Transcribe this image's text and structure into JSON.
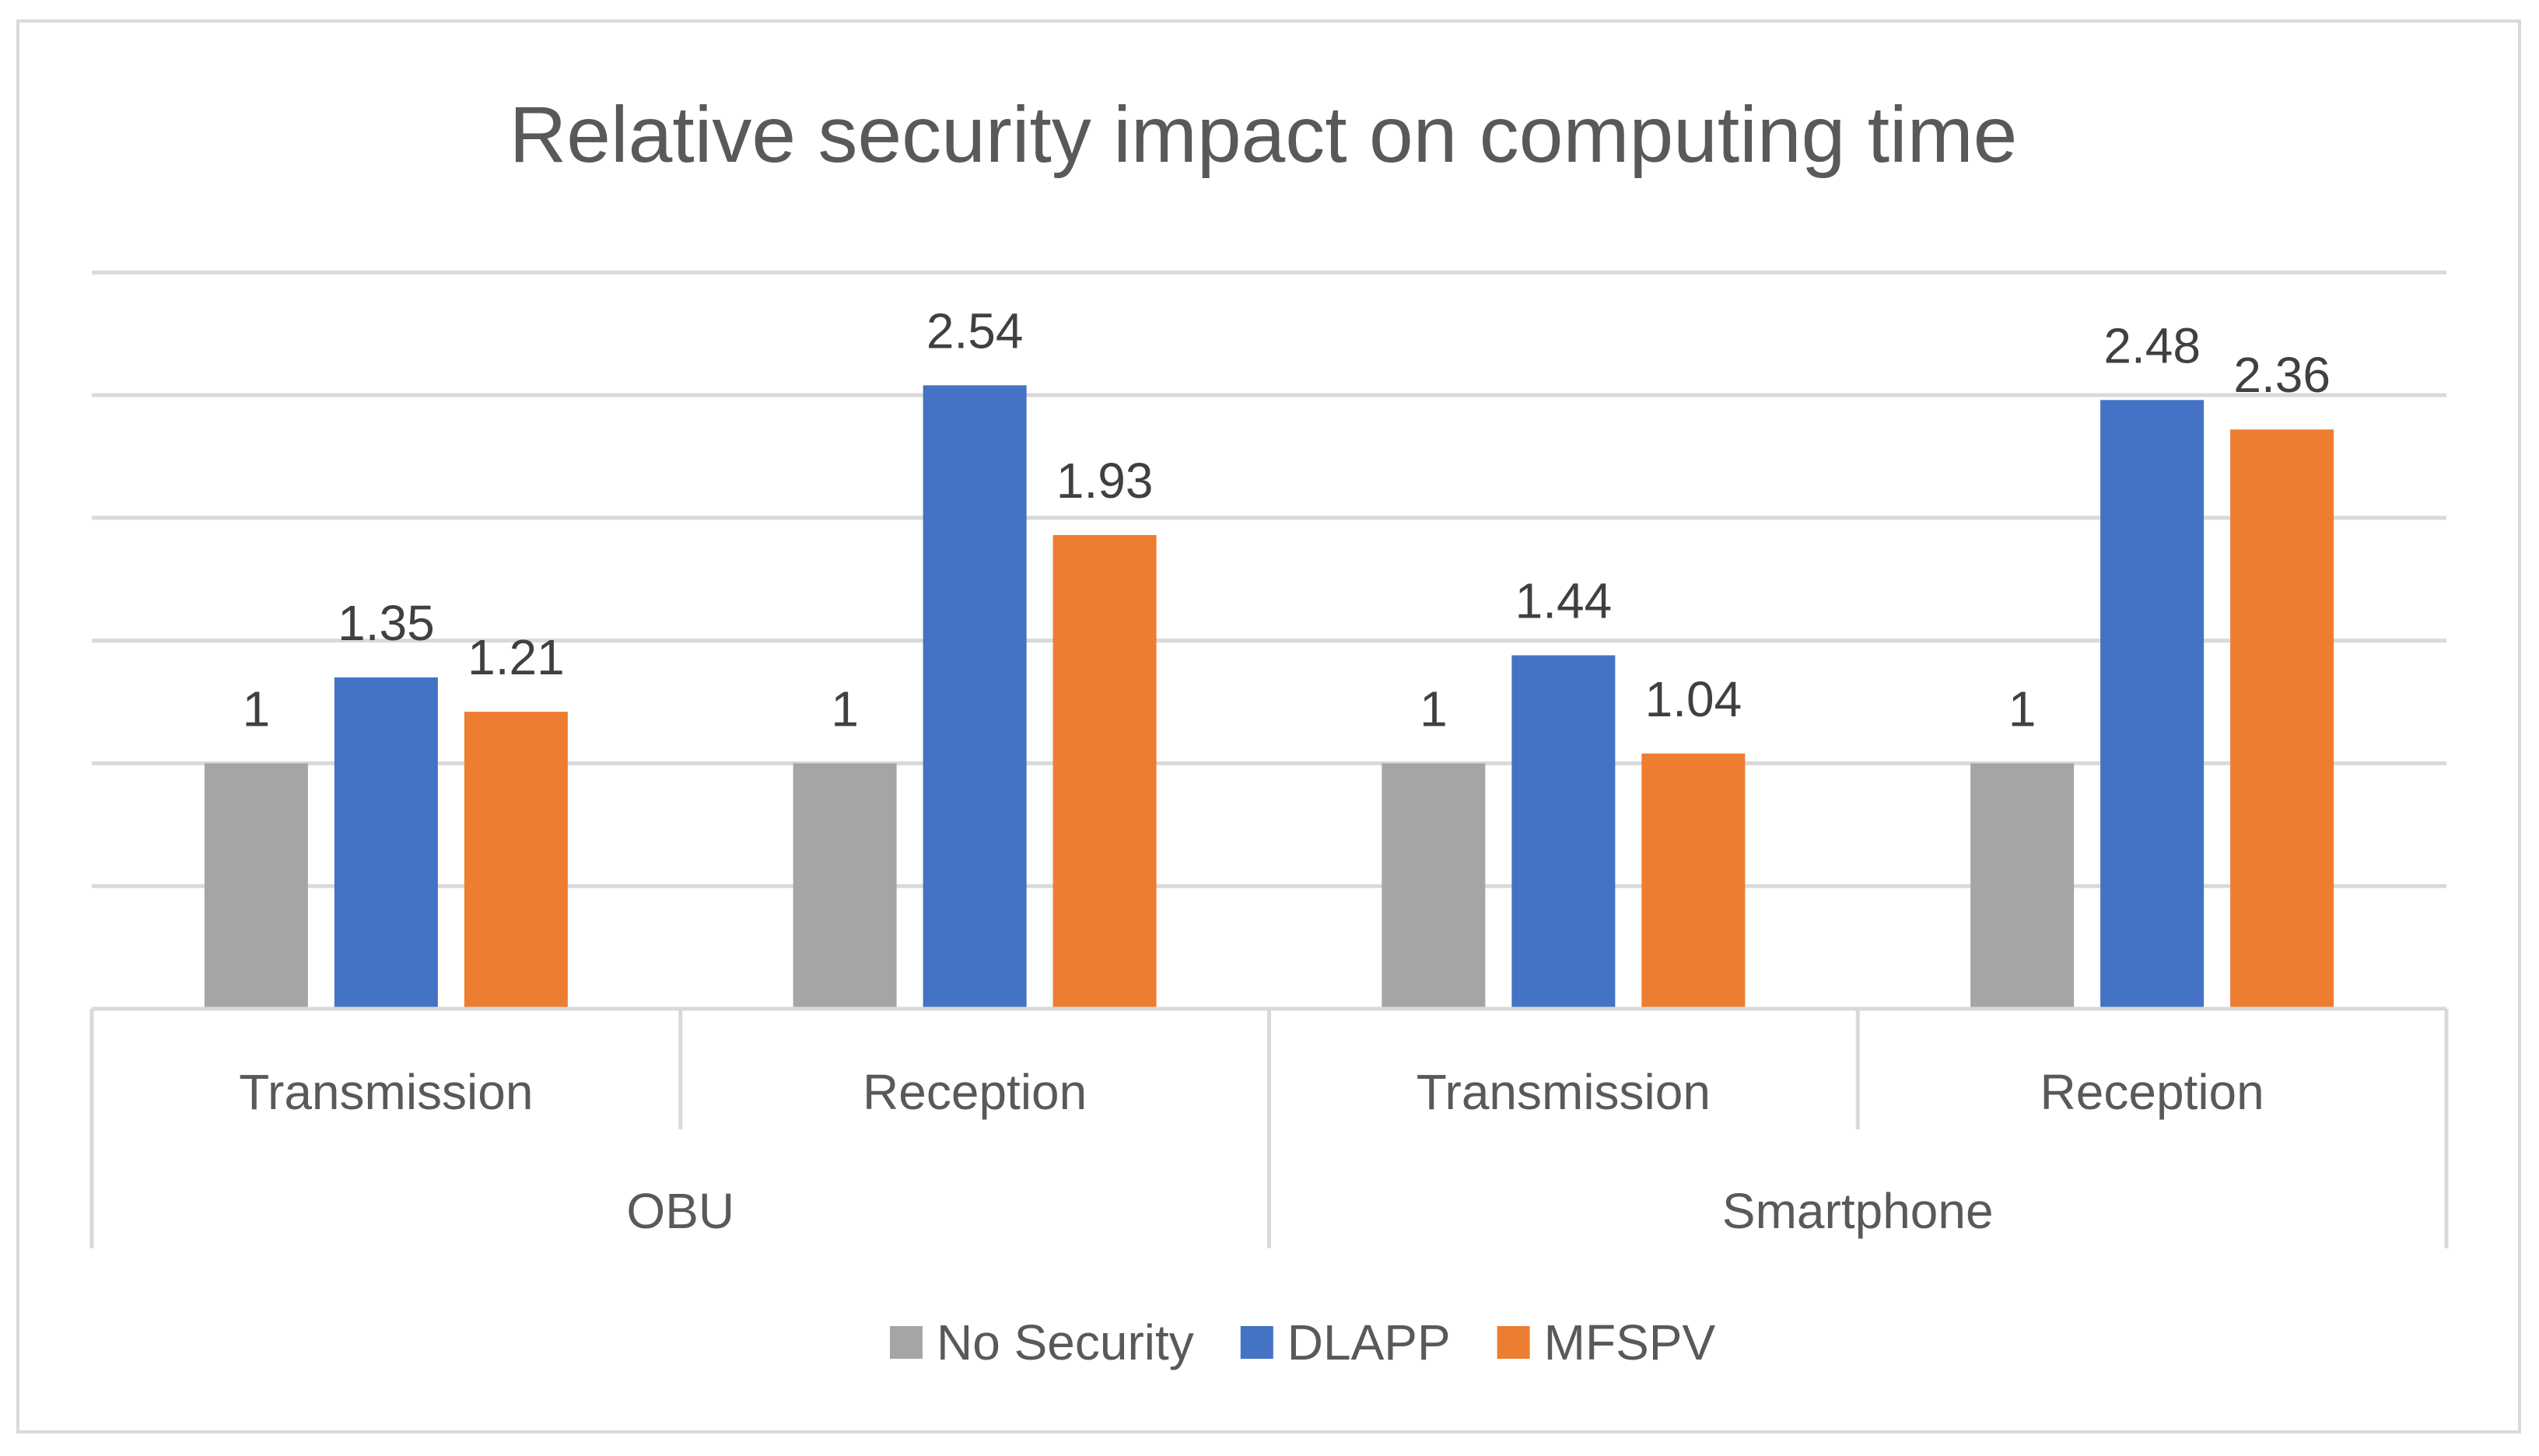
{
  "chart_data": {
    "type": "bar",
    "title": "Relative security impact on computing time",
    "groups": [
      {
        "label": "OBU",
        "categories": [
          "Transmission",
          "Reception"
        ]
      },
      {
        "label": "Smartphone",
        "categories": [
          "Transmission",
          "Reception"
        ]
      }
    ],
    "categories": [
      "Transmission",
      "Reception",
      "Transmission",
      "Reception"
    ],
    "series": [
      {
        "name": "No Security",
        "color": "#a5a5a5",
        "values": [
          1,
          1,
          1,
          1
        ],
        "labels": [
          "1",
          "1",
          "1",
          "1"
        ]
      },
      {
        "name": "DLAPP",
        "color": "#4472c4",
        "values": [
          1.35,
          2.54,
          1.44,
          2.48
        ],
        "labels": [
          "1.35",
          "2.54",
          "1.44",
          "2.48"
        ]
      },
      {
        "name": "MFSPV",
        "color": "#ed7d31",
        "values": [
          1.21,
          1.93,
          1.04,
          2.36
        ],
        "labels": [
          "1.21",
          "1.93",
          "1.04",
          "2.36"
        ]
      }
    ],
    "ylim": [
      0,
      3
    ],
    "grid": true,
    "legend": "bottom",
    "xlabel": "",
    "ylabel": ""
  }
}
